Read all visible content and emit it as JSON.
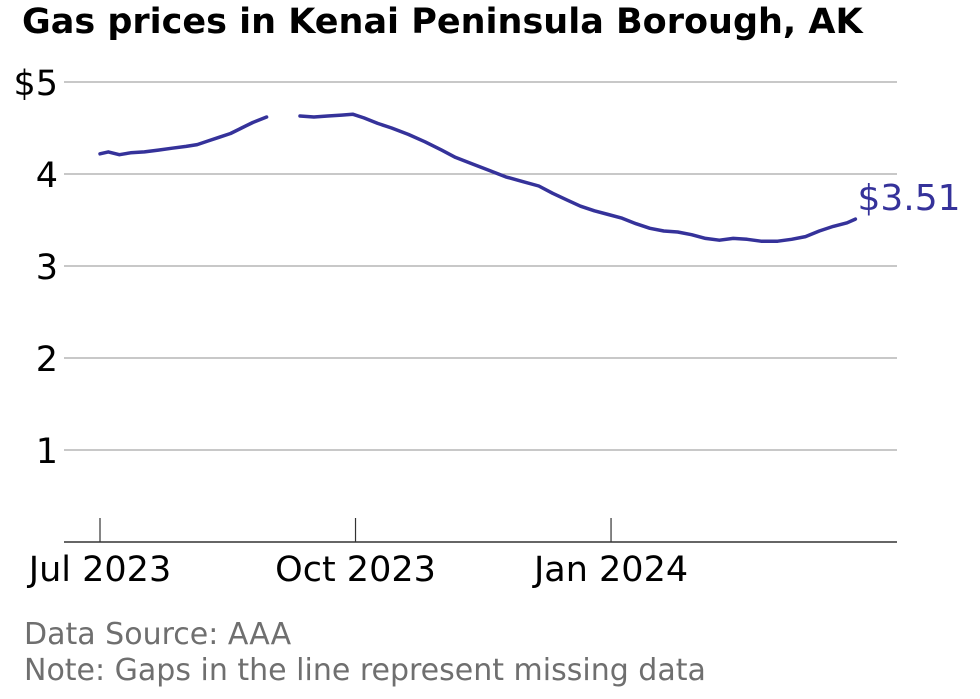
{
  "chart_data": {
    "type": "line",
    "title": "Gas prices in Kenai Peninsula Borough, AK",
    "xlabel": "",
    "ylabel": "",
    "x_ticks": [
      "Jul 2023",
      "Oct 2023",
      "Jan 2024"
    ],
    "y_ticks": [
      "$5",
      "4",
      "3",
      "2",
      "1"
    ],
    "y_tick_values": [
      5,
      4,
      3,
      2,
      1
    ],
    "ylim": [
      0,
      5
    ],
    "x_range": [
      "2023-07-01",
      "2024-03-31"
    ],
    "grid": true,
    "line_color": "#35329a",
    "end_label": "$3.51",
    "series": [
      {
        "segments": [
          [
            [
              "2023-07-01",
              4.22
            ],
            [
              "2023-07-04",
              4.24
            ],
            [
              "2023-07-08",
              4.21
            ],
            [
              "2023-07-12",
              4.23
            ],
            [
              "2023-07-17",
              4.24
            ],
            [
              "2023-07-22",
              4.26
            ],
            [
              "2023-07-27",
              4.28
            ],
            [
              "2023-08-01",
              4.3
            ],
            [
              "2023-08-05",
              4.32
            ],
            [
              "2023-08-09",
              4.36
            ],
            [
              "2023-08-13",
              4.4
            ],
            [
              "2023-08-17",
              4.44
            ],
            [
              "2023-08-21",
              4.5
            ],
            [
              "2023-08-25",
              4.56
            ],
            [
              "2023-08-30",
              4.62
            ]
          ],
          [
            [
              "2023-09-11",
              4.63
            ],
            [
              "2023-09-16",
              4.62
            ],
            [
              "2023-09-21",
              4.63
            ],
            [
              "2023-09-26",
              4.64
            ],
            [
              "2023-09-30",
              4.65
            ],
            [
              "2023-10-04",
              4.61
            ],
            [
              "2023-10-09",
              4.55
            ],
            [
              "2023-10-14",
              4.5
            ],
            [
              "2023-10-20",
              4.43
            ],
            [
              "2023-10-26",
              4.35
            ],
            [
              "2023-11-01",
              4.26
            ],
            [
              "2023-11-06",
              4.18
            ],
            [
              "2023-11-12",
              4.11
            ],
            [
              "2023-11-18",
              4.04
            ],
            [
              "2023-11-24",
              3.97
            ],
            [
              "2023-11-30",
              3.92
            ],
            [
              "2023-12-06",
              3.87
            ],
            [
              "2023-12-11",
              3.79
            ],
            [
              "2023-12-16",
              3.72
            ],
            [
              "2023-12-21",
              3.65
            ],
            [
              "2023-12-26",
              3.6
            ],
            [
              "2023-12-31",
              3.56
            ],
            [
              "2024-01-05",
              3.52
            ],
            [
              "2024-01-10",
              3.46
            ],
            [
              "2024-01-15",
              3.41
            ],
            [
              "2024-01-20",
              3.38
            ],
            [
              "2024-01-25",
              3.37
            ],
            [
              "2024-01-30",
              3.34
            ],
            [
              "2024-02-04",
              3.3
            ],
            [
              "2024-02-09",
              3.28
            ],
            [
              "2024-02-14",
              3.3
            ],
            [
              "2024-02-19",
              3.29
            ],
            [
              "2024-02-24",
              3.27
            ],
            [
              "2024-03-01",
              3.27
            ],
            [
              "2024-03-06",
              3.29
            ],
            [
              "2024-03-11",
              3.32
            ],
            [
              "2024-03-16",
              3.38
            ],
            [
              "2024-03-21",
              3.43
            ],
            [
              "2024-03-26",
              3.47
            ],
            [
              "2024-03-29",
              3.51
            ]
          ]
        ]
      }
    ]
  },
  "footer": {
    "source": "Data Source: AAA",
    "note": "Note: Gaps in the line represent missing data"
  }
}
